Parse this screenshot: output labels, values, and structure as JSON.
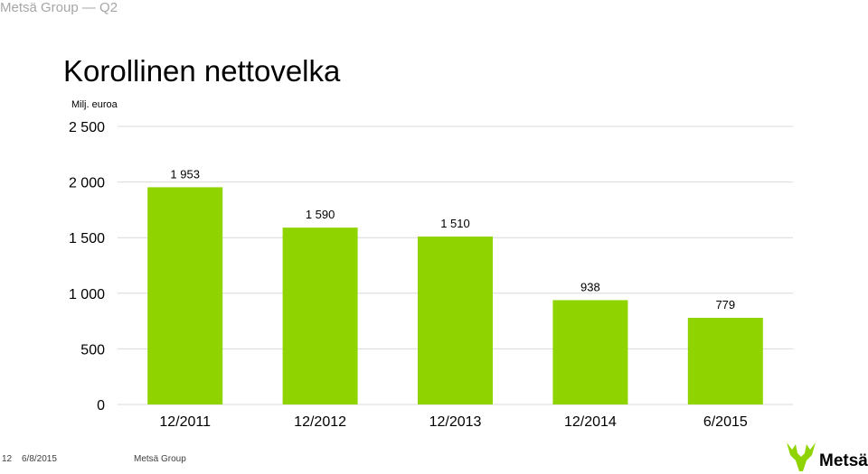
{
  "header": {
    "text": "Metsä Group — Q2"
  },
  "title": "Korollinen nettovelka",
  "unit": "Milj. euroa",
  "footer": {
    "page": "12",
    "date": "6/8/2015",
    "company": "Metsä Group"
  },
  "logo": {
    "text": "Metsä"
  },
  "colors": {
    "bar": "#8fd400",
    "grid": "#d9d9d9",
    "header": "#a6a6a6"
  },
  "chart_data": {
    "type": "bar",
    "categories": [
      "12/2011",
      "12/2012",
      "12/2013",
      "12/2014",
      "6/2015"
    ],
    "values": [
      1953,
      1590,
      1510,
      938,
      779
    ],
    "data_labels": [
      "1 953",
      "1 590",
      "1 510",
      "938",
      "779"
    ],
    "yticks": [
      0,
      500,
      1000,
      1500,
      2000,
      2500
    ],
    "ytick_labels": [
      "0",
      "500",
      "1 000",
      "1 500",
      "2 000",
      "2 500"
    ],
    "ylim": [
      0,
      2500
    ],
    "grid": true,
    "legend": "none"
  }
}
